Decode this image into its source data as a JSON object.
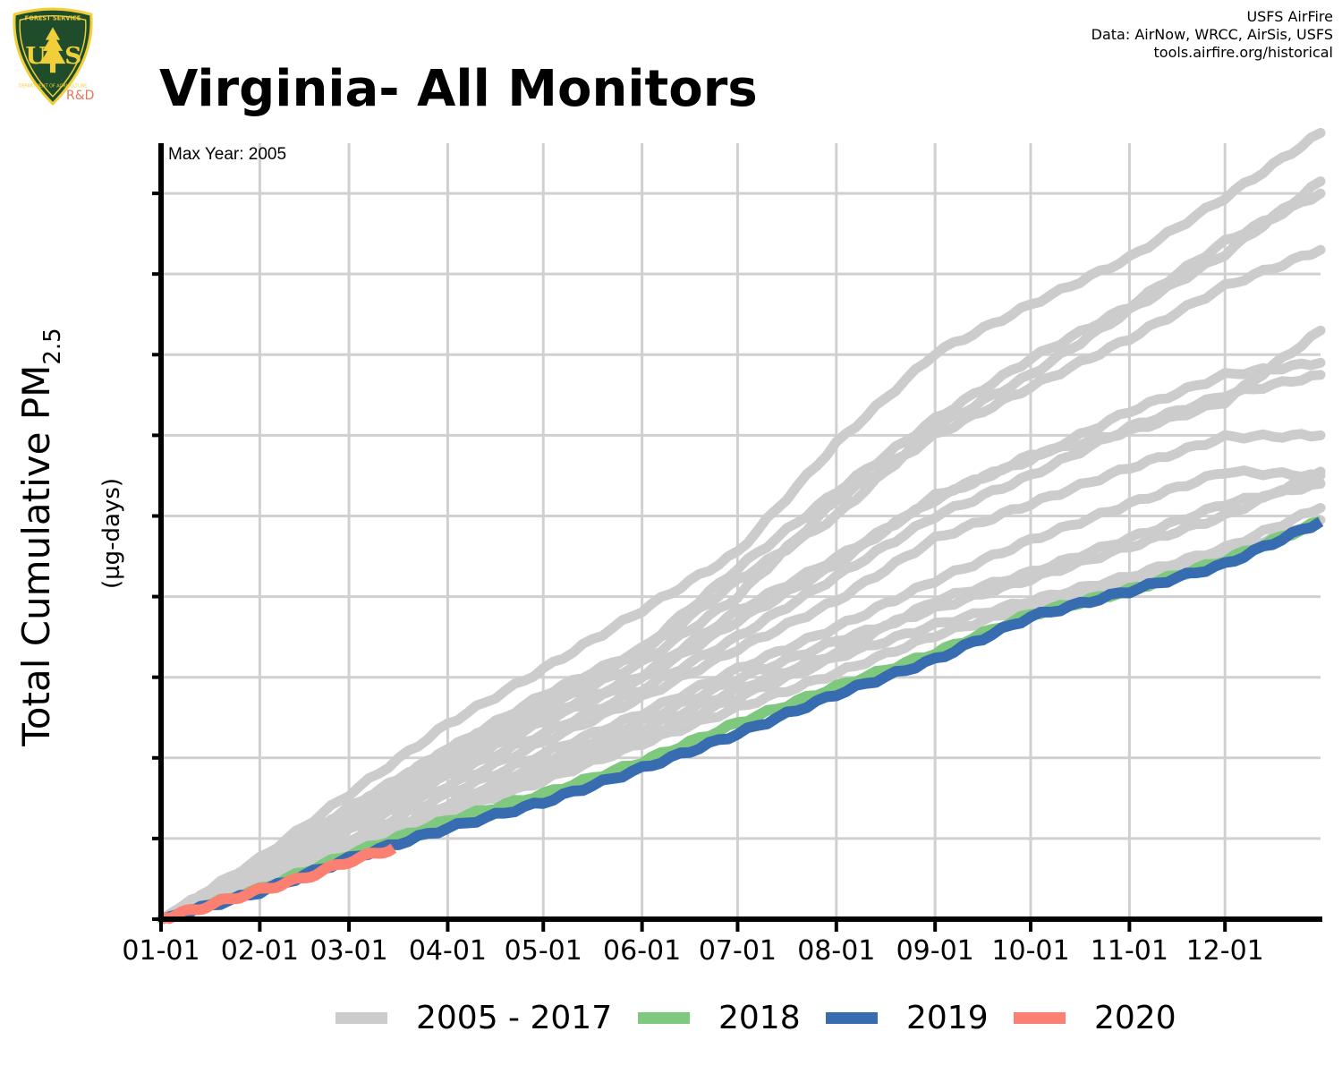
{
  "header": {
    "title": "Virginia- All Monitors",
    "credit_lines": [
      "USFS AirFire",
      "Data: AirNow, WRCC, AirSis, USFS",
      "tools.airfire.org/historical"
    ],
    "logo": {
      "icon": "usfs-shield-logo",
      "letters": "USFS",
      "sub_label": "R&D",
      "top_text": "FOREST SERVICE",
      "bottom_text": "DEPARTMENT OF AGRICULTURE"
    }
  },
  "colors": {
    "historical": "#cccccc",
    "y2018": "#7fc97f",
    "y2019": "#386cb0",
    "y2020": "#fb8072",
    "grid": "#d0d0d0",
    "axis": "#000000",
    "logo_green": "#1f4d2b",
    "logo_gold": "#f1cf3b"
  },
  "chart_data": {
    "type": "line",
    "title": "Virginia- All Monitors",
    "annotation": "Max Year: 2005",
    "ylabel": "Total Cumulative PM",
    "ylabel_subscript": "2.5",
    "ylabel_units": "(µg-days)",
    "xlabel": "",
    "x_unit": "day_of_year",
    "xlim": [
      1,
      365
    ],
    "ylim": [
      0,
      9.8
    ],
    "y_ticks": [
      0,
      1,
      2,
      3,
      4,
      5,
      6,
      7,
      8,
      9
    ],
    "y_tick_labels_shown": false,
    "x_ticks": [
      {
        "day": 1,
        "label": "01-01"
      },
      {
        "day": 32,
        "label": "02-01"
      },
      {
        "day": 60,
        "label": "03-01"
      },
      {
        "day": 91,
        "label": "04-01"
      },
      {
        "day": 121,
        "label": "05-01"
      },
      {
        "day": 152,
        "label": "06-01"
      },
      {
        "day": 182,
        "label": "07-01"
      },
      {
        "day": 213,
        "label": "08-01"
      },
      {
        "day": 244,
        "label": "09-01"
      },
      {
        "day": 274,
        "label": "10-01"
      },
      {
        "day": 305,
        "label": "11-01"
      },
      {
        "day": 335,
        "label": "12-01"
      }
    ],
    "grid": true,
    "legend_position": "bottom",
    "legend": [
      {
        "label": "2005 - 2017",
        "color": "#cccccc"
      },
      {
        "label": "2018",
        "color": "#7fc97f"
      },
      {
        "label": "2019",
        "color": "#386cb0"
      },
      {
        "label": "2020",
        "color": "#fb8072"
      }
    ],
    "historical_group": "2005 - 2017",
    "historical_series": [
      {
        "x": [
          1,
          32,
          60,
          91,
          121,
          152,
          182,
          213,
          244,
          274,
          305,
          335,
          365
        ],
        "y": [
          0,
          0.75,
          1.55,
          2.42,
          3.1,
          3.83,
          4.55,
          5.9,
          7.02,
          7.62,
          8.2,
          8.95,
          9.75
        ]
      },
      {
        "x": [
          1,
          32,
          60,
          91,
          121,
          152,
          182,
          213,
          244,
          274,
          305,
          335,
          365
        ],
        "y": [
          0,
          0.7,
          1.38,
          2.1,
          2.78,
          3.35,
          4.35,
          5.3,
          6.2,
          6.95,
          7.6,
          8.4,
          9.0
        ]
      },
      {
        "x": [
          1,
          32,
          60,
          91,
          121,
          152,
          182,
          213,
          244,
          274,
          305,
          335,
          365
        ],
        "y": [
          0,
          0.65,
          1.35,
          2.1,
          2.7,
          3.3,
          4.2,
          5.0,
          6.1,
          6.75,
          7.55,
          8.25,
          9.15
        ]
      },
      {
        "x": [
          1,
          32,
          60,
          91,
          121,
          152,
          182,
          213,
          244,
          274,
          305,
          335,
          365
        ],
        "y": [
          0,
          0.62,
          1.3,
          2.02,
          2.62,
          3.18,
          4.0,
          5.2,
          6.0,
          6.6,
          7.2,
          7.85,
          8.3
        ]
      },
      {
        "x": [
          1,
          32,
          60,
          91,
          121,
          152,
          182,
          213,
          244,
          274,
          305,
          335,
          365
        ],
        "y": [
          0,
          0.55,
          1.2,
          1.92,
          2.52,
          3.02,
          3.82,
          4.48,
          5.2,
          5.75,
          6.05,
          6.42,
          7.3
        ]
      },
      {
        "x": [
          1,
          32,
          60,
          91,
          121,
          152,
          182,
          213,
          244,
          274,
          305,
          335,
          365
        ],
        "y": [
          0,
          0.55,
          1.2,
          1.85,
          2.45,
          2.98,
          3.7,
          4.4,
          5.25,
          5.7,
          6.3,
          6.75,
          6.9
        ]
      },
      {
        "x": [
          1,
          32,
          60,
          91,
          121,
          152,
          182,
          213,
          244,
          274,
          305,
          335,
          365
        ],
        "y": [
          0,
          0.52,
          1.15,
          1.78,
          2.3,
          2.85,
          3.5,
          4.25,
          5.0,
          5.5,
          6.1,
          6.5,
          6.75
        ]
      },
      {
        "x": [
          1,
          32,
          60,
          91,
          121,
          152,
          182,
          213,
          244,
          274,
          305,
          335,
          365
        ],
        "y": [
          0,
          0.5,
          1.1,
          1.65,
          2.2,
          2.75,
          3.35,
          3.95,
          4.72,
          5.15,
          5.6,
          5.98,
          6.0
        ]
      },
      {
        "x": [
          1,
          32,
          60,
          91,
          121,
          152,
          182,
          213,
          244,
          274,
          305,
          335,
          365
        ],
        "y": [
          0,
          0.45,
          0.98,
          1.55,
          2.05,
          2.55,
          3.1,
          3.62,
          4.2,
          4.7,
          5.15,
          5.55,
          5.5
        ]
      },
      {
        "x": [
          1,
          32,
          60,
          91,
          121,
          152,
          182,
          213,
          244,
          274,
          305,
          335,
          365
        ],
        "y": [
          0,
          0.42,
          0.9,
          1.42,
          1.95,
          2.45,
          2.98,
          3.45,
          3.85,
          4.22,
          4.62,
          5.0,
          5.55
        ]
      },
      {
        "x": [
          1,
          32,
          60,
          91,
          121,
          152,
          182,
          213,
          244,
          274,
          305,
          335,
          365
        ],
        "y": [
          0,
          0.42,
          0.88,
          1.38,
          1.88,
          2.35,
          2.85,
          3.3,
          3.95,
          4.3,
          4.72,
          5.15,
          5.4
        ]
      },
      {
        "x": [
          1,
          32,
          60,
          91,
          121,
          152,
          182,
          213,
          244,
          274,
          305,
          335,
          365
        ],
        "y": [
          0,
          0.4,
          0.85,
          1.32,
          1.8,
          2.25,
          2.75,
          3.25,
          3.65,
          3.95,
          4.25,
          4.6,
          5.1
        ]
      },
      {
        "x": [
          1,
          32,
          60,
          91,
          121,
          152,
          182,
          213,
          244,
          274,
          305,
          335,
          365
        ],
        "y": [
          0,
          0.38,
          0.82,
          1.3,
          1.72,
          2.18,
          2.62,
          3.05,
          3.52,
          3.88,
          4.2,
          4.52,
          4.95
        ]
      }
    ],
    "series": [
      {
        "name": "2018",
        "color": "#7fc97f",
        "x": [
          1,
          32,
          60,
          91,
          121,
          152,
          182,
          213,
          244,
          274,
          305,
          335,
          365
        ],
        "y": [
          0,
          0.37,
          0.8,
          1.22,
          1.55,
          1.95,
          2.43,
          2.88,
          3.3,
          3.78,
          4.08,
          4.45,
          4.93
        ]
      },
      {
        "name": "2019",
        "color": "#386cb0",
        "x": [
          1,
          32,
          60,
          91,
          121,
          152,
          182,
          213,
          244,
          274,
          305,
          335,
          365
        ],
        "y": [
          0,
          0.34,
          0.75,
          1.13,
          1.45,
          1.87,
          2.3,
          2.79,
          3.22,
          3.75,
          4.07,
          4.4,
          4.93
        ]
      },
      {
        "name": "2020",
        "color": "#fb8072",
        "x": [
          1,
          10,
          20,
          32,
          45,
          60,
          74
        ],
        "y": [
          0,
          0.1,
          0.22,
          0.36,
          0.5,
          0.72,
          0.88
        ]
      }
    ]
  }
}
